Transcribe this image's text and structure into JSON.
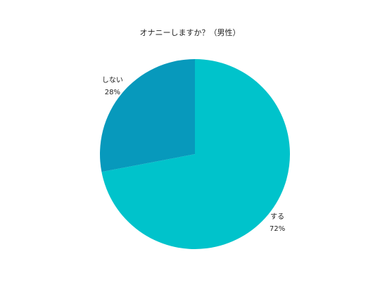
{
  "chart_data": {
    "type": "pie",
    "title": "オナニーしますか？（男性）",
    "categories": [
      "する",
      "しない"
    ],
    "values": [
      72,
      28
    ],
    "value_labels": [
      "72%",
      "28%"
    ],
    "colors": [
      "#00c3cb",
      "#0799bc"
    ]
  }
}
